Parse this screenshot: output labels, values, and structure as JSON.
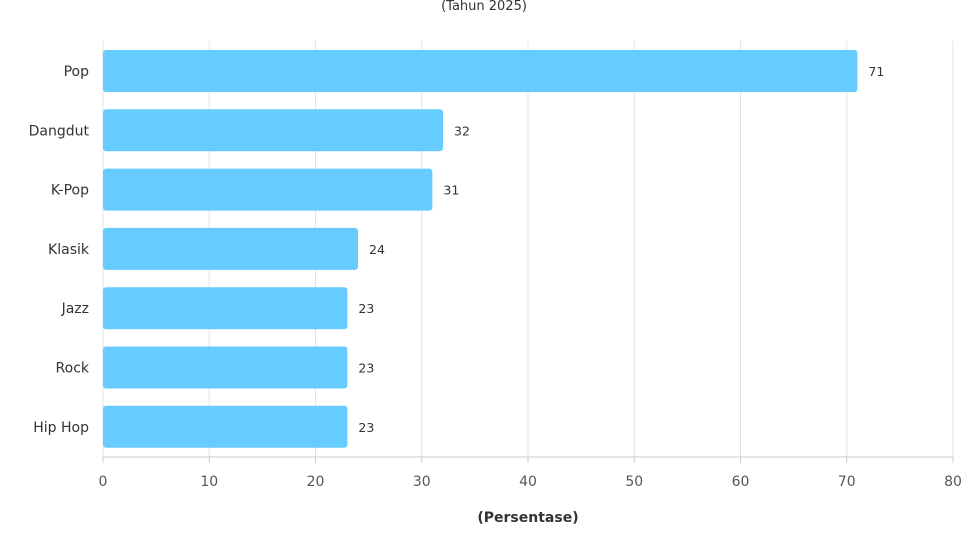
{
  "chart_data": {
    "type": "bar",
    "orientation": "horizontal",
    "subtitle": "(Tahun 2025)",
    "xlabel": "(Persentase)",
    "categories": [
      "Pop",
      "Dangdut",
      "K-Pop",
      "Klasik",
      "Jazz",
      "Rock",
      "Hip Hop"
    ],
    "values": [
      71,
      32,
      31,
      24,
      23,
      23,
      23
    ],
    "xlim": [
      0,
      80
    ],
    "xticks": [
      0,
      10,
      20,
      30,
      40,
      50,
      60,
      70,
      80
    ],
    "grid": true,
    "bar_color": "#66ccff"
  }
}
